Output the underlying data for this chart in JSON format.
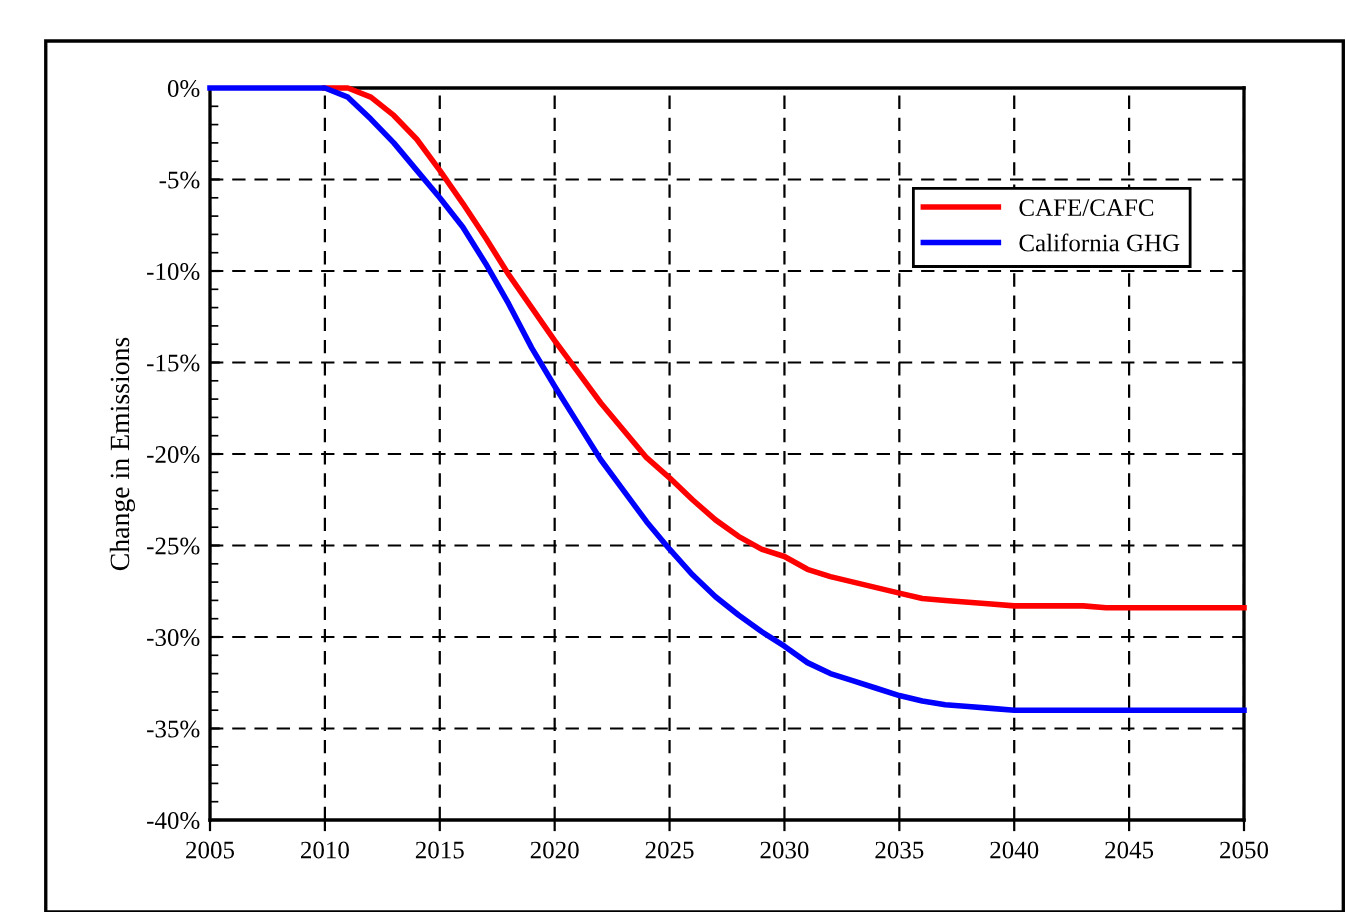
{
  "chart_data": {
    "type": "line",
    "ylabel": "Change in Emissions",
    "x": [
      2005,
      2006,
      2007,
      2008,
      2009,
      2010,
      2011,
      2012,
      2013,
      2014,
      2015,
      2016,
      2017,
      2018,
      2019,
      2020,
      2021,
      2022,
      2023,
      2024,
      2025,
      2026,
      2027,
      2028,
      2029,
      2030,
      2031,
      2032,
      2033,
      2034,
      2035,
      2036,
      2037,
      2038,
      2039,
      2040,
      2041,
      2042,
      2043,
      2044,
      2045,
      2046,
      2047,
      2048,
      2049,
      2050
    ],
    "series": [
      {
        "name": "CAFE/CAFC",
        "color": "#ff0000",
        "values": [
          null,
          null,
          null,
          null,
          null,
          0,
          0,
          -0.5,
          -1.5,
          -2.8,
          -4.5,
          -6.3,
          -8.2,
          -10.2,
          -12,
          -13.8,
          -15.5,
          -17.2,
          -18.7,
          -20.2,
          -21.3,
          -22.5,
          -23.6,
          -24.5,
          -25.2,
          -25.6,
          -26.3,
          -26.7,
          -27.0,
          -27.3,
          -27.6,
          -27.9,
          -28.0,
          -28.1,
          -28.2,
          -28.3,
          -28.3,
          -28.3,
          -28.3,
          -28.4,
          -28.4,
          -28.4,
          -28.4,
          -28.4,
          -28.4,
          -28.4
        ]
      },
      {
        "name": "California GHG",
        "color": "#0000ff",
        "values": [
          0,
          0,
          0,
          0,
          0,
          0,
          -0.5,
          -1.7,
          -3,
          -4.5,
          -6,
          -7.6,
          -9.6,
          -11.8,
          -14.2,
          -16.3,
          -18.3,
          -20.3,
          -22,
          -23.7,
          -25.2,
          -26.6,
          -27.8,
          -28.8,
          -29.7,
          -30.5,
          -31.4,
          -32,
          -32.4,
          -32.8,
          -33.2,
          -33.5,
          -33.7,
          -33.8,
          -33.9,
          -34.0,
          -34.0,
          -34.0,
          -34.0,
          -34.0,
          -34.0,
          -34.0,
          -34.0,
          -34.0,
          -34.0,
          -34.0
        ]
      }
    ],
    "xlim": [
      2005,
      2050
    ],
    "xticks": [
      2005,
      2010,
      2015,
      2020,
      2025,
      2030,
      2035,
      2040,
      2045,
      2050
    ],
    "ylim": [
      -40,
      0
    ],
    "yticks": [
      {
        "value": 0,
        "label": "0%"
      },
      {
        "value": -5,
        "label": "-5%"
      },
      {
        "value": -10,
        "label": "-10%"
      },
      {
        "value": -15,
        "label": "-15%"
      },
      {
        "value": -20,
        "label": "-20%"
      },
      {
        "value": -25,
        "label": "-25%"
      },
      {
        "value": -30,
        "label": "-30%"
      },
      {
        "value": -35,
        "label": "-35%"
      },
      {
        "value": -40,
        "label": "-40%"
      }
    ],
    "grid": true,
    "legend": "top right",
    "marker": "none",
    "line_style": "solid"
  }
}
